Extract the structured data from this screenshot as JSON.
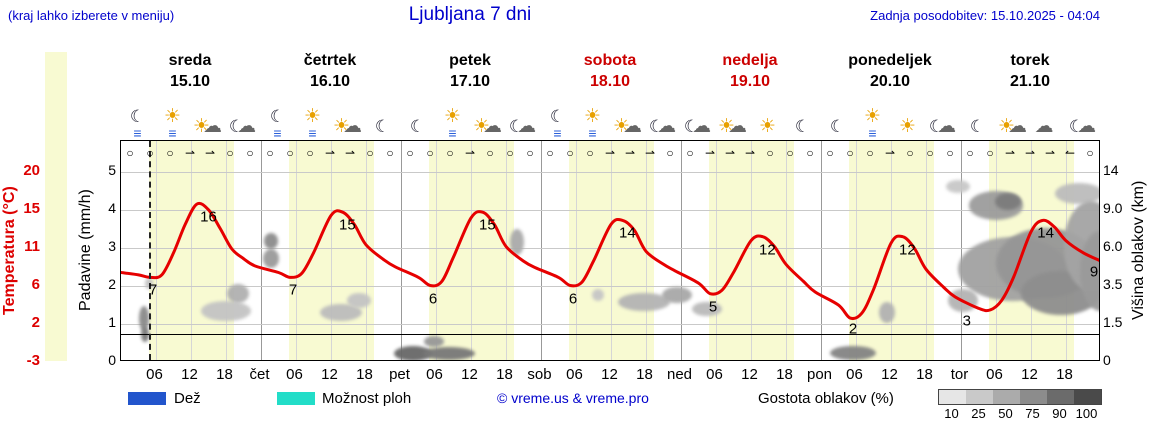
{
  "header": {
    "note": "(kraj lahko izberete v meniju)",
    "title": "Ljubljana 7 dni",
    "updated": "Zadnja posodobitev: 15.10.2025 - 04:04"
  },
  "axes": {
    "temp_title": "Temperatura (°C)",
    "precip_title": "Padavine (mm/h)",
    "cloud_title": "Višina oblakov (km)",
    "temp_ticks": [
      "20",
      "15",
      "11",
      "6",
      "2",
      "-3"
    ],
    "precip_ticks": [
      "5",
      "4",
      "3",
      "2",
      "1",
      "0"
    ],
    "cloud_ticks": [
      "14",
      "9.0",
      "6.0",
      "3.5",
      "1.5",
      "0"
    ]
  },
  "days": [
    {
      "name": "sreda",
      "date": "15.10",
      "color": "#000000"
    },
    {
      "name": "četrtek",
      "date": "16.10",
      "color": "#000000"
    },
    {
      "name": "petek",
      "date": "17.10",
      "color": "#000000"
    },
    {
      "name": "sobota",
      "date": "18.10",
      "color": "#cc0000"
    },
    {
      "name": "nedelja",
      "date": "19.10",
      "color": "#cc0000"
    },
    {
      "name": "ponedeljek",
      "date": "20.10",
      "color": "#000000"
    },
    {
      "name": "torek",
      "date": "21.10",
      "color": "#000000"
    }
  ],
  "icons": [
    {
      "moon": "☾",
      "fog": "≡"
    },
    {
      "sun": "☀",
      "fog": "≡"
    },
    {
      "sun": "☀",
      "cloud": "☁"
    },
    {
      "moon": "☾",
      "cloud": "☁"
    },
    {
      "moon": "☾",
      "fog": "≡"
    },
    {
      "sun": "☀",
      "fog": "≡"
    },
    {
      "sun": "☀",
      "cloud": "☁"
    },
    {
      "moon": "☾"
    },
    {
      "moon": "☾"
    },
    {
      "sun": "☀",
      "fog": "≡"
    },
    {
      "sun": "☀",
      "cloud": "☁"
    },
    {
      "moon": "☾",
      "cloud": "☁"
    },
    {
      "moon": "☾",
      "fog": "≡"
    },
    {
      "sun": "☀",
      "fog": "≡"
    },
    {
      "sun": "☀",
      "cloud": "☁"
    },
    {
      "moon": "☾",
      "cloud": "☁"
    },
    {
      "moon": "☾",
      "cloud": "☁"
    },
    {
      "sun": "☀",
      "cloud": "☁"
    },
    {
      "sun": "☀"
    },
    {
      "moon": "☾"
    },
    {
      "moon": "☾"
    },
    {
      "sun": "☀",
      "fog": "≡"
    },
    {
      "sun": "☀"
    },
    {
      "moon": "☾",
      "cloud": "☁"
    },
    {
      "moon": "☾"
    },
    {
      "sun": "☀",
      "cloud": "☁"
    },
    {
      "cloud": "☁"
    },
    {
      "moon": "☾",
      "cloud": "☁"
    }
  ],
  "wind": [
    "○",
    "○",
    "○",
    "⇀",
    "⇀",
    "○",
    "○",
    "○",
    "○",
    "○",
    "⇀",
    "⇀",
    "○",
    "○",
    "○",
    "○",
    "○",
    "⇀",
    "○",
    "○",
    "○",
    "○",
    "○",
    "○",
    "⇀",
    "⇀",
    "⇀",
    "○",
    "○",
    "⇀",
    "⇀",
    "⇀",
    "○",
    "○",
    "○",
    "○",
    "○",
    "○",
    "⇀",
    "○",
    "○",
    "○",
    "○",
    "○",
    "⇀",
    "⇀",
    "⇀",
    "↼",
    "○"
  ],
  "xticks": [
    "06",
    "12",
    "18",
    "čet",
    "06",
    "12",
    "18",
    "pet",
    "06",
    "12",
    "18",
    "sob",
    "06",
    "12",
    "18",
    "ned",
    "06",
    "12",
    "18",
    "pon",
    "06",
    "12",
    "18",
    "tor",
    "06",
    "12",
    "18"
  ],
  "legend": {
    "rain_label": "Dež",
    "rain_color": "#2255cc",
    "showers_label": "Možnost ploh",
    "showers_color": "#22ddc8",
    "credit": "© vreme.us & vreme.pro",
    "cloud_density_label": "Gostota oblakov (%)",
    "density_values": [
      "10",
      "25",
      "50",
      "75",
      "90",
      "100"
    ],
    "density_colors": [
      "#e6e6e6",
      "#c9c9c9",
      "#ababab",
      "#8c8c8c",
      "#6b6b6b",
      "#4a4a4a"
    ]
  },
  "chart_data": {
    "type": "line",
    "title": "Ljubljana 7 dni",
    "x_unit": "hours from 2025-10-15 00:00",
    "x_range": [
      0,
      168
    ],
    "temp_axis": {
      "label": "Temperatura (°C)",
      "min": -3.33,
      "max": 20,
      "ticks": [
        20,
        15,
        11,
        6,
        2,
        -3
      ]
    },
    "precip_axis": {
      "label": "Padavine (mm/h)",
      "ticks": [
        5,
        4,
        3,
        2,
        1,
        0
      ]
    },
    "cloud_axis": {
      "label": "Višina oblakov (km)",
      "ticks": [
        14,
        9.0,
        6.0,
        3.5,
        1.5,
        0
      ]
    },
    "day_band_hours": [
      4.8,
      19.4
    ],
    "day_band_color": "#f8fad2",
    "now_line_t": 4.8,
    "freezing_line_temp": 0,
    "series": [
      {
        "name": "Temperatura (°C)",
        "color": "#e60000",
        "points": [
          [
            0,
            7.6
          ],
          [
            3,
            7.3
          ],
          [
            5,
            7.0
          ],
          [
            7,
            7.3
          ],
          [
            9,
            10.0
          ],
          [
            11,
            13.5
          ],
          [
            13,
            16.0
          ],
          [
            15,
            15.3
          ],
          [
            17,
            13.0
          ],
          [
            19,
            10.5
          ],
          [
            21,
            9.3
          ],
          [
            23,
            8.4
          ],
          [
            27,
            7.6
          ],
          [
            29,
            7.0
          ],
          [
            31,
            7.5
          ],
          [
            33,
            10.0
          ],
          [
            36,
            14.6
          ],
          [
            38,
            15.0
          ],
          [
            40,
            13.5
          ],
          [
            42,
            11.0
          ],
          [
            45,
            9.2
          ],
          [
            47,
            8.3
          ],
          [
            51,
            7.0
          ],
          [
            53,
            6.0
          ],
          [
            55,
            6.5
          ],
          [
            57,
            9.5
          ],
          [
            60,
            14.3
          ],
          [
            62,
            15.0
          ],
          [
            64,
            13.5
          ],
          [
            66,
            10.8
          ],
          [
            69,
            9.0
          ],
          [
            71,
            8.2
          ],
          [
            75,
            7.0
          ],
          [
            77,
            6.0
          ],
          [
            79,
            6.4
          ],
          [
            81,
            9.0
          ],
          [
            84,
            13.5
          ],
          [
            86,
            14.0
          ],
          [
            88,
            12.8
          ],
          [
            90,
            10.2
          ],
          [
            93,
            8.6
          ],
          [
            95,
            7.8
          ],
          [
            99,
            6.3
          ],
          [
            101,
            5.0
          ],
          [
            103,
            5.4
          ],
          [
            105,
            7.6
          ],
          [
            108,
            11.5
          ],
          [
            110,
            12.0
          ],
          [
            112,
            10.8
          ],
          [
            114,
            8.6
          ],
          [
            117,
            6.5
          ],
          [
            119,
            5.2
          ],
          [
            123,
            3.6
          ],
          [
            125,
            2.0
          ],
          [
            127,
            2.6
          ],
          [
            129,
            5.5
          ],
          [
            132,
            11.2
          ],
          [
            134,
            12.0
          ],
          [
            136,
            10.6
          ],
          [
            138,
            8.0
          ],
          [
            141,
            5.8
          ],
          [
            143,
            4.6
          ],
          [
            147,
            3.2
          ],
          [
            149,
            3.0
          ],
          [
            151,
            4.2
          ],
          [
            153,
            7.0
          ],
          [
            156,
            12.6
          ],
          [
            158,
            14.0
          ],
          [
            160,
            13.2
          ],
          [
            162,
            11.5
          ],
          [
            165,
            10.0
          ],
          [
            168,
            9.0
          ]
        ]
      }
    ],
    "point_labels": [
      {
        "t": 5.5,
        "T": 5.4,
        "text": "7"
      },
      {
        "t": 15.0,
        "T": 14.4,
        "text": "16"
      },
      {
        "t": 29.5,
        "T": 5.4,
        "text": "7"
      },
      {
        "t": 38.8,
        "T": 13.4,
        "text": "15"
      },
      {
        "t": 53.5,
        "T": 4.4,
        "text": "6"
      },
      {
        "t": 62.8,
        "T": 13.4,
        "text": "15"
      },
      {
        "t": 77.5,
        "T": 4.4,
        "text": "6"
      },
      {
        "t": 86.8,
        "T": 12.4,
        "text": "14"
      },
      {
        "t": 101.5,
        "T": 3.4,
        "text": "5"
      },
      {
        "t": 110.8,
        "T": 10.4,
        "text": "12"
      },
      {
        "t": 125.5,
        "T": 0.6,
        "text": "2"
      },
      {
        "t": 134.8,
        "T": 10.4,
        "text": "12"
      },
      {
        "t": 145.0,
        "T": 1.6,
        "text": "3"
      },
      {
        "t": 158.5,
        "T": 12.4,
        "text": "14"
      },
      {
        "t": 166.8,
        "T": 7.6,
        "text": "9"
      }
    ],
    "clouds": [
      {
        "t": 4.0,
        "v": 1.12,
        "w": 1.7,
        "h": 0.66,
        "c": "#8a8a8a"
      },
      {
        "t": 4.1,
        "v": 0.7,
        "w": 1.4,
        "h": 0.4,
        "c": "#7a7a7a"
      },
      {
        "t": 4.8,
        "v": 2.05,
        "w": 1.3,
        "h": 0.28,
        "c": "#c2c2c2"
      },
      {
        "t": 18.0,
        "v": 1.33,
        "w": 8.6,
        "h": 0.55,
        "c": "#c4c4c4"
      },
      {
        "t": 20.0,
        "v": 1.78,
        "w": 3.8,
        "h": 0.5,
        "c": "#b0b0b0"
      },
      {
        "t": 25.7,
        "v": 2.72,
        "w": 2.7,
        "h": 0.5,
        "c": "#9a9a9a"
      },
      {
        "t": 25.7,
        "v": 3.17,
        "w": 2.4,
        "h": 0.4,
        "c": "#8c8c8c"
      },
      {
        "t": 37.7,
        "v": 1.28,
        "w": 7.2,
        "h": 0.45,
        "c": "#bcbcbc"
      },
      {
        "t": 40.8,
        "v": 1.6,
        "w": 4.1,
        "h": 0.38,
        "c": "#c4c4c4"
      },
      {
        "t": 50.0,
        "v": 0.22,
        "w": 6.5,
        "h": 0.4,
        "c": "#686868"
      },
      {
        "t": 56.2,
        "v": 0.2,
        "w": 8.9,
        "h": 0.34,
        "c": "#787878"
      },
      {
        "t": 53.7,
        "v": 0.52,
        "w": 3.4,
        "h": 0.28,
        "c": "#989898"
      },
      {
        "t": 67.9,
        "v": 3.14,
        "w": 2.4,
        "h": 0.7,
        "c": "#aaaaaa"
      },
      {
        "t": 81.8,
        "v": 1.75,
        "w": 2.1,
        "h": 0.32,
        "c": "#c6c6c6"
      },
      {
        "t": 89.7,
        "v": 1.57,
        "w": 8.9,
        "h": 0.48,
        "c": "#b4b4b4"
      },
      {
        "t": 95.3,
        "v": 1.75,
        "w": 5.1,
        "h": 0.44,
        "c": "#a8a8a8"
      },
      {
        "t": 100.5,
        "v": 1.38,
        "w": 5.1,
        "h": 0.38,
        "c": "#bababa"
      },
      {
        "t": 125.5,
        "v": 0.22,
        "w": 7.9,
        "h": 0.38,
        "c": "#848484"
      },
      {
        "t": 131.3,
        "v": 1.3,
        "w": 2.7,
        "h": 0.55,
        "c": "#b2b2b2"
      },
      {
        "t": 143.5,
        "v": 4.6,
        "w": 4.1,
        "h": 0.34,
        "c": "#c8c8c8"
      },
      {
        "t": 144.3,
        "v": 1.6,
        "w": 5.1,
        "h": 0.6,
        "c": "#b4b4b4"
      },
      {
        "t": 150.0,
        "v": 4.1,
        "w": 9.4,
        "h": 0.75,
        "c": "#9c9c9c"
      },
      {
        "t": 152.0,
        "v": 4.2,
        "w": 4.5,
        "h": 0.45,
        "c": "#7c7c7c"
      },
      {
        "t": 152.9,
        "v": 2.43,
        "w": 18.9,
        "h": 1.7,
        "c": "#a2a2a2"
      },
      {
        "t": 158.6,
        "v": 2.6,
        "w": 17.1,
        "h": 1.85,
        "c": "#969696"
      },
      {
        "t": 161.1,
        "v": 1.8,
        "w": 13.7,
        "h": 1.16,
        "c": "#8e8e8e"
      },
      {
        "t": 164.2,
        "v": 4.43,
        "w": 8.2,
        "h": 0.55,
        "c": "#bcbcbc"
      },
      {
        "t": 166.3,
        "v": 3.04,
        "w": 9.4,
        "h": 2.35,
        "c": "#a4a4a4"
      },
      {
        "t": 167.8,
        "v": 2.38,
        "w": 6.9,
        "h": 2.1,
        "c": "#9a9a9a"
      }
    ]
  }
}
